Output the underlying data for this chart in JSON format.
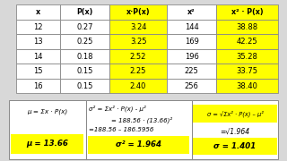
{
  "table_headers": [
    "x",
    "P(x)",
    "x·P(x)",
    "x²",
    "x² · P(x)"
  ],
  "table_data": [
    [
      "12",
      "0.27",
      "3.24",
      "144",
      "38.88"
    ],
    [
      "13",
      "0.25",
      "3.25",
      "169",
      "42.25"
    ],
    [
      "14",
      "0.18",
      "2.52",
      "196",
      "35.28"
    ],
    [
      "15",
      "0.15",
      "2.25",
      "225",
      "33.75"
    ],
    [
      "16",
      "0.15",
      "2.40",
      "256",
      "38.40"
    ]
  ],
  "yellow": "#FFFF00",
  "hi_cols": [
    2,
    4
  ],
  "fig_bg": "#d8d8d8",
  "white": "#ffffff",
  "border": "#888888",
  "formula_mu_top": "μ = Σx · P(x)",
  "formula_mu_val": "μ = 13.66",
  "formula_s2_l1": "σ² = Σx² · P(x) - μ²",
  "formula_s2_l2": "= 188.56 · (13.66)²",
  "formula_s2_l3": "=188.56 – 186.5956",
  "formula_s2_val": "σ² = 1.964",
  "formula_sig_top": "σ = √Σx² · P(x) – μ²",
  "formula_sig_l2": "=√1.964",
  "formula_sig_val": "σ = 1.401"
}
